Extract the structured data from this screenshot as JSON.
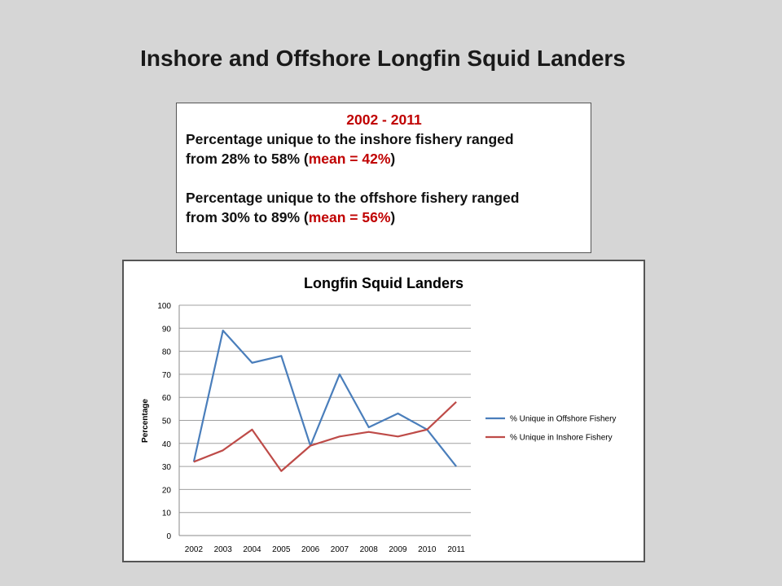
{
  "slide": {
    "title": "Inshore and Offshore Longfin Squid Landers"
  },
  "summary": {
    "years": "2002 - 2011",
    "inshore_line1": "Percentage unique to the inshore fishery ranged",
    "inshore_line2_prefix": "from 28% to 58% (",
    "inshore_mean": "mean = 42%",
    "inshore_line2_suffix": ")",
    "offshore_line1": "Percentage unique to the offshore fishery ranged",
    "offshore_line2_prefix": "from 30% to 89% (",
    "offshore_mean": "mean = 56%",
    "offshore_line2_suffix": ")"
  },
  "chart_data": {
    "type": "line",
    "title": "Longfin Squid Landers",
    "xlabel": "",
    "ylabel": "Percentage",
    "categories": [
      "2002",
      "2003",
      "2004",
      "2005",
      "2006",
      "2007",
      "2008",
      "2009",
      "2010",
      "2011"
    ],
    "ylim": [
      0,
      100
    ],
    "yticks": [
      0,
      10,
      20,
      30,
      40,
      50,
      60,
      70,
      80,
      90,
      100
    ],
    "grid": true,
    "legend_position": "right",
    "series": [
      {
        "name": "% Unique in Offshore Fishery",
        "color": "#4a7ebb",
        "values": [
          32,
          89,
          75,
          78,
          39,
          70,
          47,
          53,
          46,
          30
        ]
      },
      {
        "name": "% Unique in Inshore Fishery",
        "color": "#be4b48",
        "values": [
          32,
          37,
          46,
          28,
          39,
          43,
          45,
          43,
          46,
          58
        ]
      }
    ]
  }
}
